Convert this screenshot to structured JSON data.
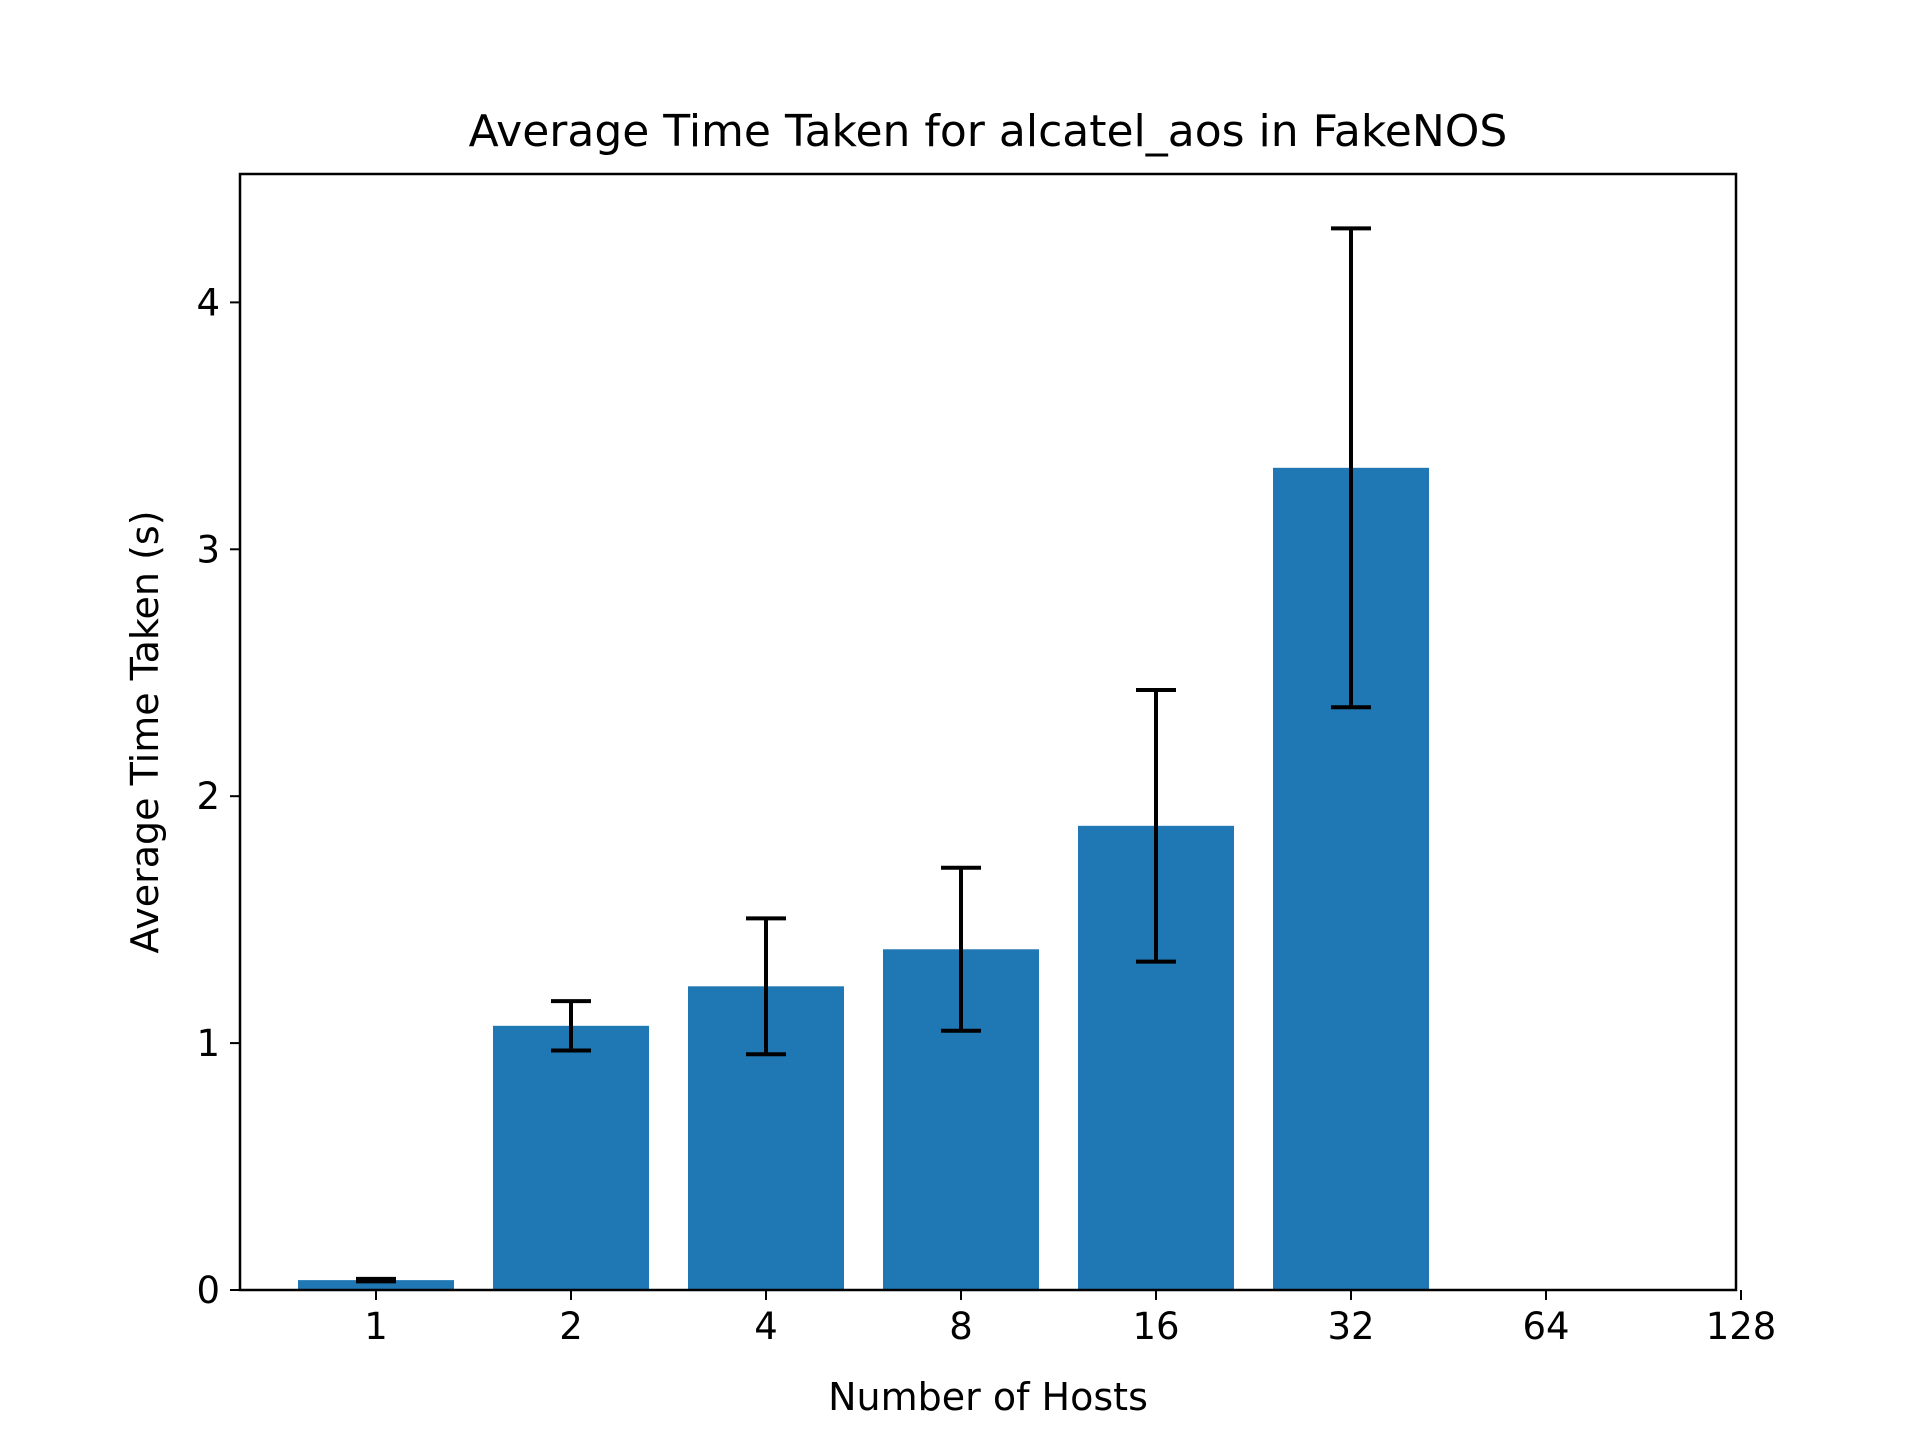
{
  "chart_data": {
    "type": "bar",
    "title": "Average Time Taken for alcatel_aos in FakeNOS",
    "xlabel": "Number of Hosts",
    "ylabel": "Average Time Taken (s)",
    "categories": [
      "1",
      "2",
      "4",
      "8",
      "16",
      "32",
      "64",
      "128"
    ],
    "values": [
      0.04,
      1.07,
      1.23,
      1.38,
      1.88,
      3.33,
      null,
      null
    ],
    "errors": [
      0.005,
      0.1,
      0.275,
      0.33,
      0.55,
      0.97,
      null,
      null
    ],
    "yticks": [
      0,
      1,
      2,
      3,
      4
    ],
    "ylim": [
      0,
      4.52
    ],
    "grid": false,
    "colors": {
      "bar": "#1f77b4",
      "error": "#000000",
      "axis": "#000000"
    }
  }
}
